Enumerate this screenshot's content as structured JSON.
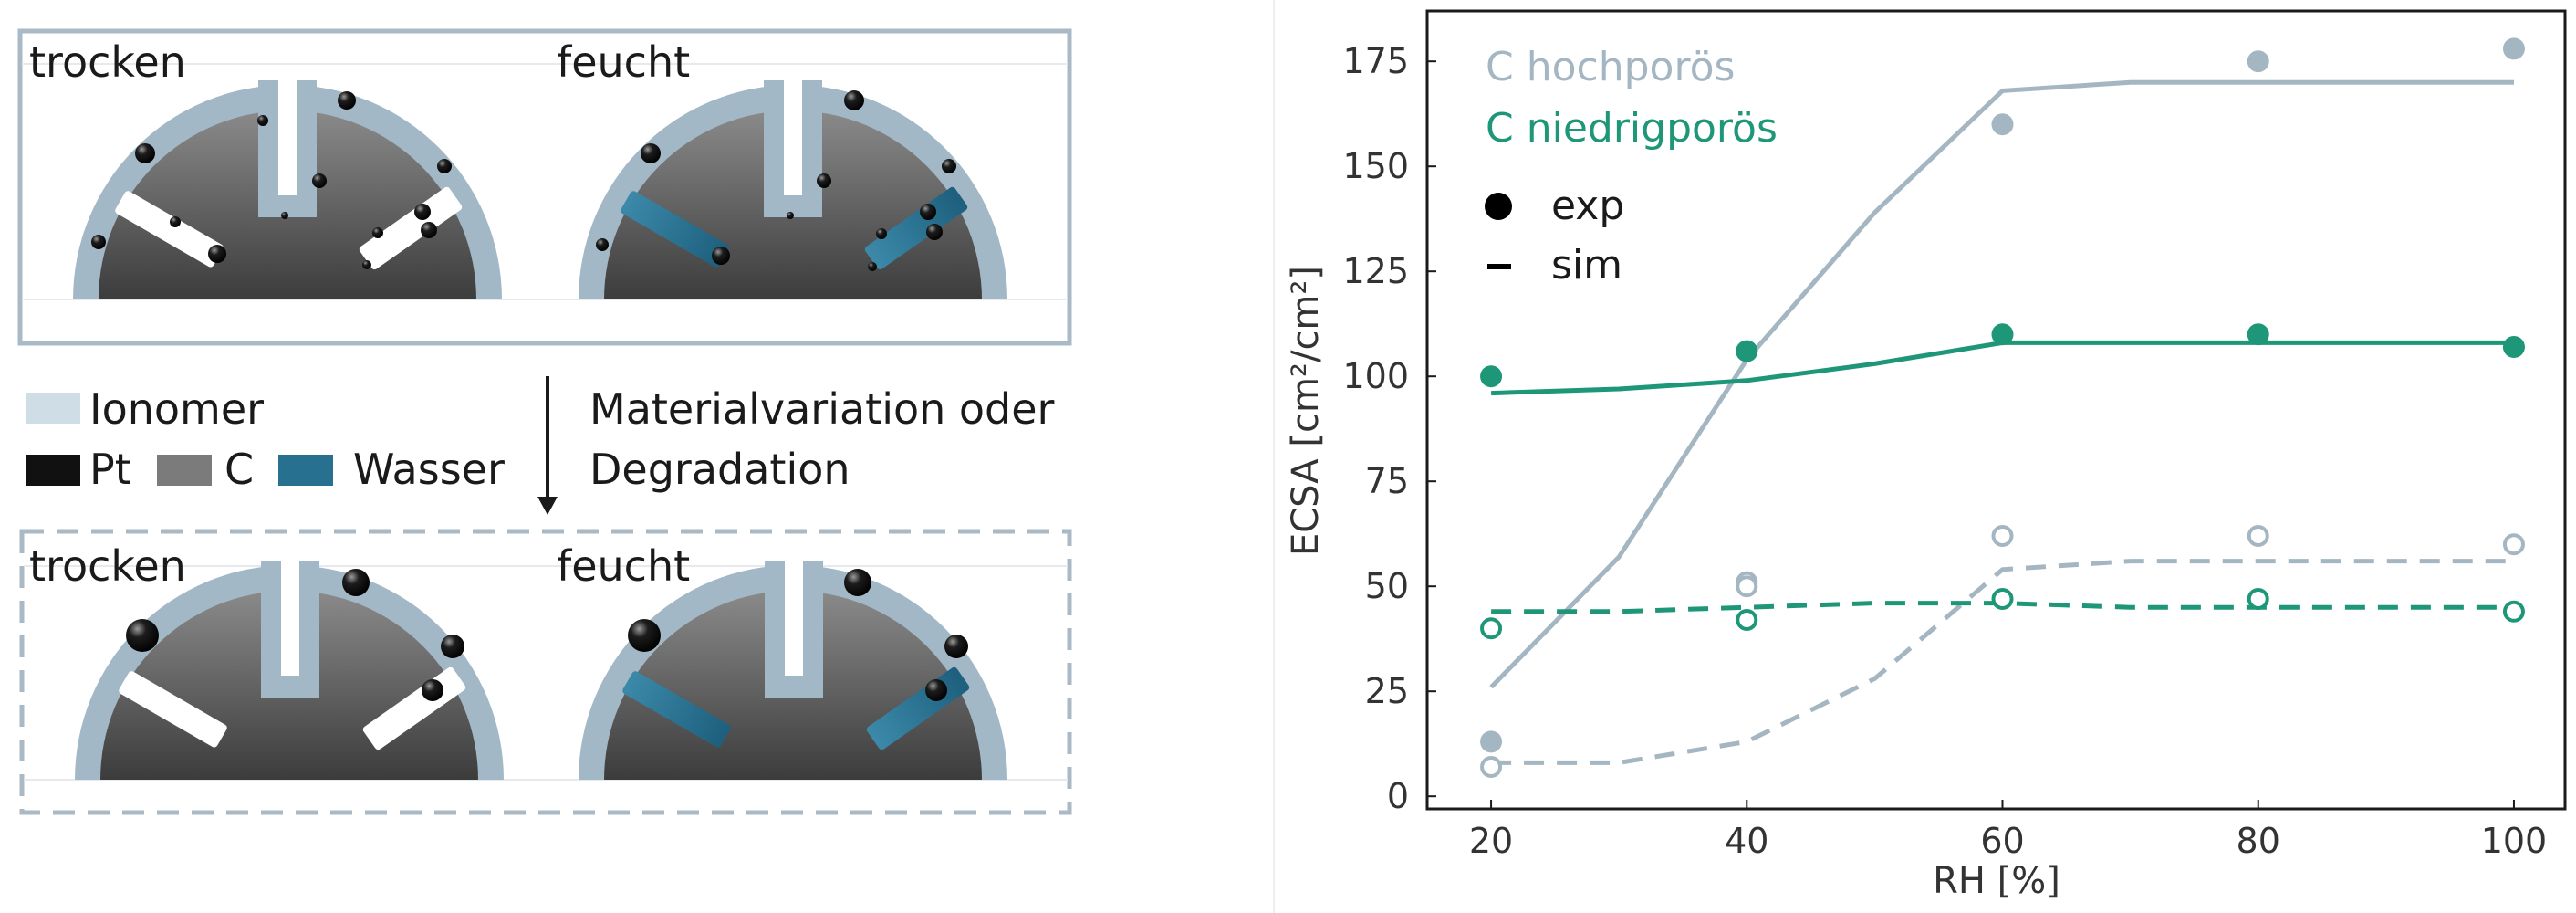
{
  "diagram": {
    "top_panel": {
      "left_label": "trocken",
      "right_label": "feucht"
    },
    "bottom_panel": {
      "left_label": "trocken",
      "right_label": "feucht"
    },
    "legend": {
      "ionomer": "Ionomer",
      "pt": "Pt",
      "c": "C",
      "water": "Wasser"
    },
    "arrow_label_line1": "Materialvariation oder",
    "arrow_label_line2": "Degradation",
    "colors": {
      "ionomer": "#a3b8c6",
      "ionomer_legend": "#cfdde6",
      "carbon": "#7b7b7b",
      "water": "#27708f",
      "pt": "#111111",
      "panel_border": "#a9bac6"
    }
  },
  "chart_data": {
    "type": "line",
    "xlabel": "RH [%]",
    "ylabel": "ECSA [cm²/cm²]",
    "xlim": [
      15,
      104
    ],
    "ylim": [
      -3,
      187
    ],
    "xticks": [
      20,
      40,
      60,
      80,
      100
    ],
    "yticks": [
      0,
      25,
      50,
      75,
      100,
      125,
      150,
      175
    ],
    "grid": false,
    "legend_placement": "top-left",
    "legend": {
      "series": [
        "C hochporös",
        "C niedrigporös"
      ],
      "markers": [
        {
          "label": "exp",
          "symbol": "filled-circle"
        },
        {
          "label": "sim",
          "symbol": "dash"
        }
      ]
    },
    "series": [
      {
        "name": "C hochporös",
        "color": "#a5b6c3",
        "exp_x": [
          20,
          40,
          60,
          80,
          100
        ],
        "exp_y": [
          13,
          106,
          160,
          175,
          178
        ],
        "fit_x": [
          20,
          30,
          40,
          50,
          60,
          70,
          80,
          90,
          100
        ],
        "fit_y": [
          26,
          57,
          104,
          139,
          168,
          170,
          170,
          170,
          170
        ],
        "exp2_x": [
          20,
          40,
          40,
          60,
          80,
          100
        ],
        "exp2_y": [
          7,
          51,
          50,
          62,
          62,
          60
        ],
        "sim_x": [
          20,
          30,
          40,
          50,
          60,
          70,
          80,
          90,
          100
        ],
        "sim_y": [
          8,
          8,
          13,
          28,
          54,
          56,
          56,
          56,
          56
        ]
      },
      {
        "name": "C niedrigporös",
        "color": "#1e9678",
        "exp_x": [
          20,
          40,
          60,
          80,
          100
        ],
        "exp_y": [
          100,
          106,
          110,
          110,
          107
        ],
        "fit_x": [
          20,
          30,
          40,
          50,
          60,
          70,
          80,
          90,
          100
        ],
        "fit_y": [
          96,
          97,
          99,
          103,
          108,
          108,
          108,
          108,
          108
        ],
        "exp2_x": [
          20,
          40,
          60,
          80,
          100
        ],
        "exp2_y": [
          40,
          42,
          47,
          47,
          44
        ],
        "sim_x": [
          20,
          30,
          40,
          50,
          60,
          70,
          80,
          90,
          100
        ],
        "sim_y": [
          44,
          44,
          45,
          46,
          46,
          45,
          45,
          45,
          45
        ]
      }
    ]
  }
}
